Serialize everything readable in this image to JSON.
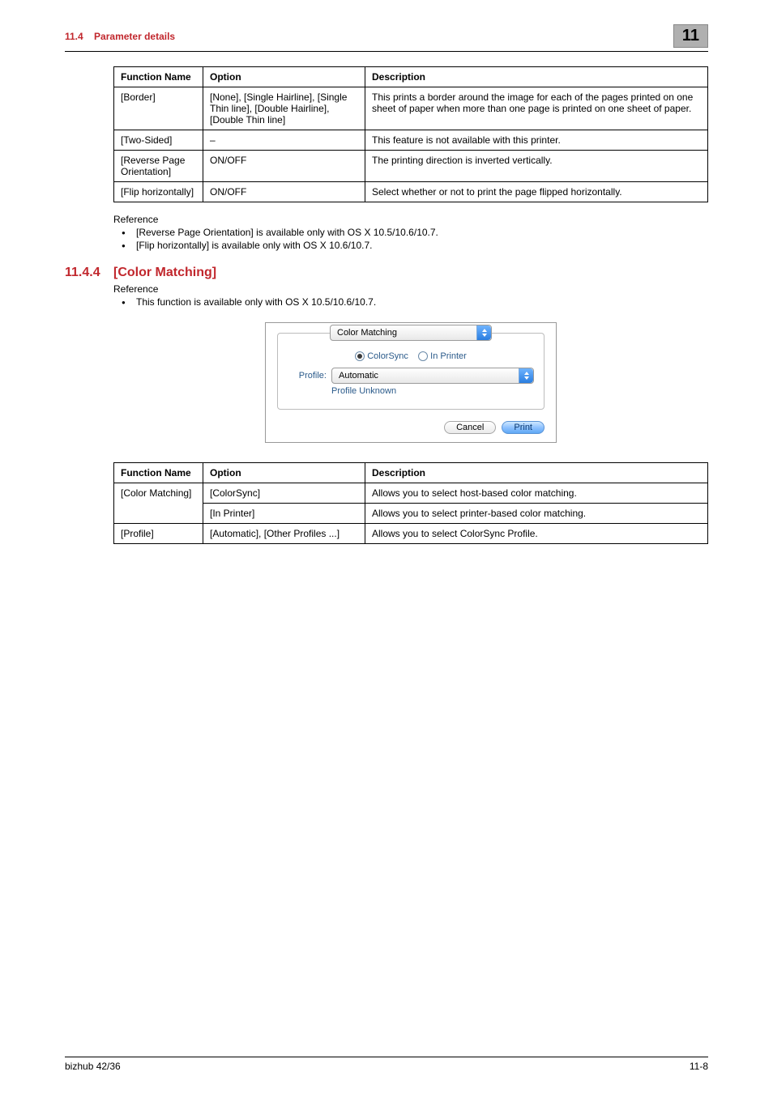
{
  "header": {
    "section_num": "11.4",
    "section_title": "Parameter details",
    "chapter_box": "11"
  },
  "table1": {
    "headers": [
      "Function Name",
      "Option",
      "Description"
    ],
    "rows": [
      {
        "fn": "[Border]",
        "opt": "[None], [Single Hairline], [Single Thin line], [Double Hairline], [Double Thin line]",
        "desc": "This prints a border around the image for each of the pages printed on one sheet of paper when more than one page is printed on one sheet of paper."
      },
      {
        "fn": "[Two-Sided]",
        "opt": "–",
        "desc": "This feature is not available with this printer."
      },
      {
        "fn": "[Reverse Page Orientation]",
        "opt": "ON/OFF",
        "desc": "The printing direction is inverted vertically."
      },
      {
        "fn": "[Flip horizontally]",
        "opt": "ON/OFF",
        "desc": "Select whether or not to print the page flipped horizontally."
      }
    ]
  },
  "ref1": {
    "label": "Reference",
    "items": [
      "[Reverse Page Orientation] is available only with OS X 10.5/10.6/10.7.",
      "[Flip horizontally] is available only with OS X 10.6/10.7."
    ]
  },
  "section": {
    "num": "11.4.4",
    "title": "[Color Matching]"
  },
  "ref2": {
    "label": "Reference",
    "items": [
      "This function is available only with OS X 10.5/10.6/10.7."
    ]
  },
  "screenshot": {
    "top_dropdown": "Color Matching",
    "radio1": "ColorSync",
    "radio2": "In Printer",
    "profile_label": "Profile:",
    "profile_value": "Automatic",
    "profile_note": "Profile Unknown",
    "cancel": "Cancel",
    "print": "Print"
  },
  "table2": {
    "headers": [
      "Function Name",
      "Option",
      "Description"
    ],
    "cm_fn": "[Color Matching]",
    "cm_rows": [
      {
        "opt": "[ColorSync]",
        "desc": "Allows you to select host-based color matching."
      },
      {
        "opt": "[In Printer]",
        "desc": "Allows you to select printer-based color matching."
      }
    ],
    "profile_row": {
      "fn": "[Profile]",
      "opt": "[Automatic], [Other Profiles ...]",
      "desc": "Allows you to select ColorSync Profile."
    }
  },
  "footer": {
    "left": "bizhub 42/36",
    "right": "11-8"
  }
}
